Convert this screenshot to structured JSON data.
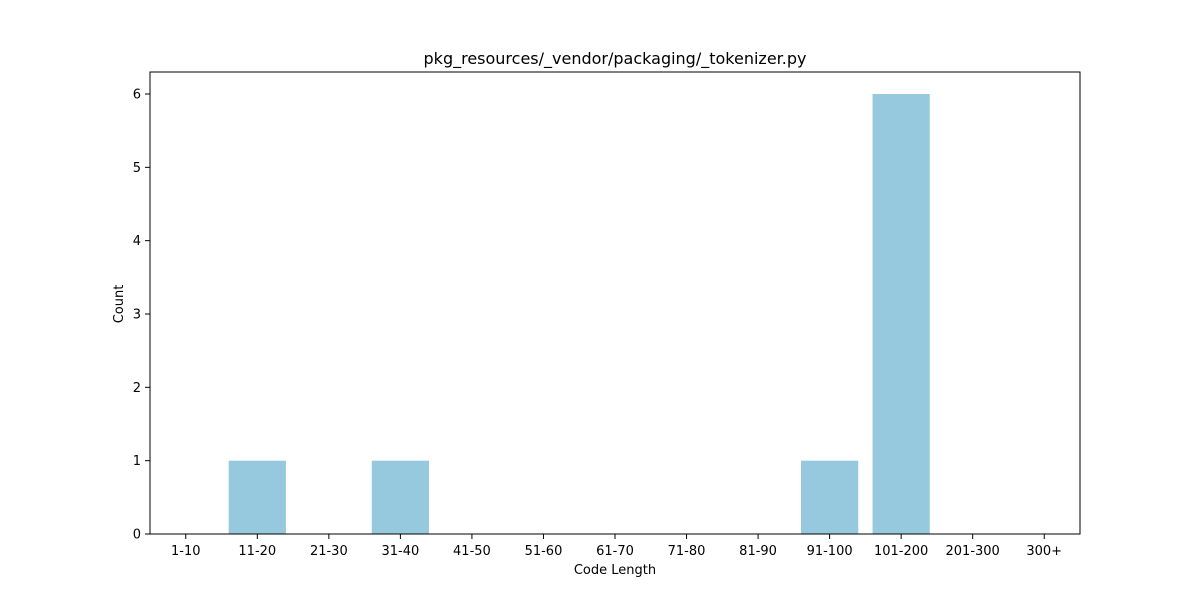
{
  "chart_data": {
    "type": "bar",
    "title": "pkg_resources/_vendor/packaging/_tokenizer.py",
    "xlabel": "Code Length",
    "ylabel": "Count",
    "categories": [
      "1-10",
      "11-20",
      "21-30",
      "31-40",
      "41-50",
      "51-60",
      "61-70",
      "71-80",
      "81-90",
      "91-100",
      "101-200",
      "201-300",
      "300+"
    ],
    "values": [
      0,
      1,
      0,
      1,
      0,
      0,
      0,
      0,
      0,
      1,
      6,
      0,
      0
    ],
    "ylim": [
      0,
      6.3
    ],
    "yticks": [
      0,
      1,
      2,
      3,
      4,
      5,
      6
    ],
    "bar_color": "#96c9dd",
    "grid": false,
    "legend": "none"
  }
}
